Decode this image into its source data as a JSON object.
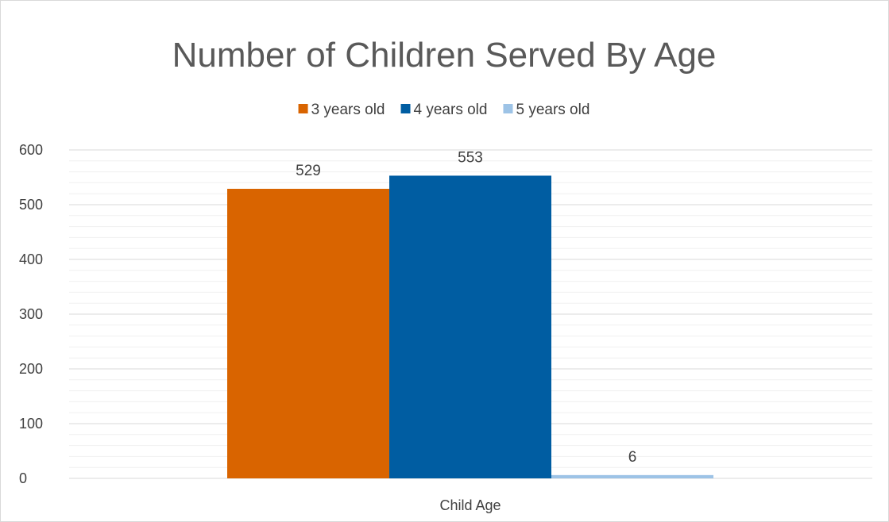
{
  "chart_data": {
    "type": "bar",
    "title": "Number of Children Served By Age",
    "categories": [
      "Child Age"
    ],
    "xlabel": "Child Age",
    "ylabel": "",
    "ylim": [
      0,
      600
    ],
    "yticks": [
      0,
      100,
      200,
      300,
      400,
      500,
      600
    ],
    "grid": true,
    "legend_position": "top",
    "series": [
      {
        "name": "3 years old",
        "values": [
          529
        ],
        "color": "#D96400"
      },
      {
        "name": "4 years old",
        "values": [
          553
        ],
        "color": "#005DA2"
      },
      {
        "name": "5 years old",
        "values": [
          6
        ],
        "color": "#9DC3E6"
      }
    ],
    "data_labels": [
      "529",
      "553",
      "6"
    ]
  }
}
